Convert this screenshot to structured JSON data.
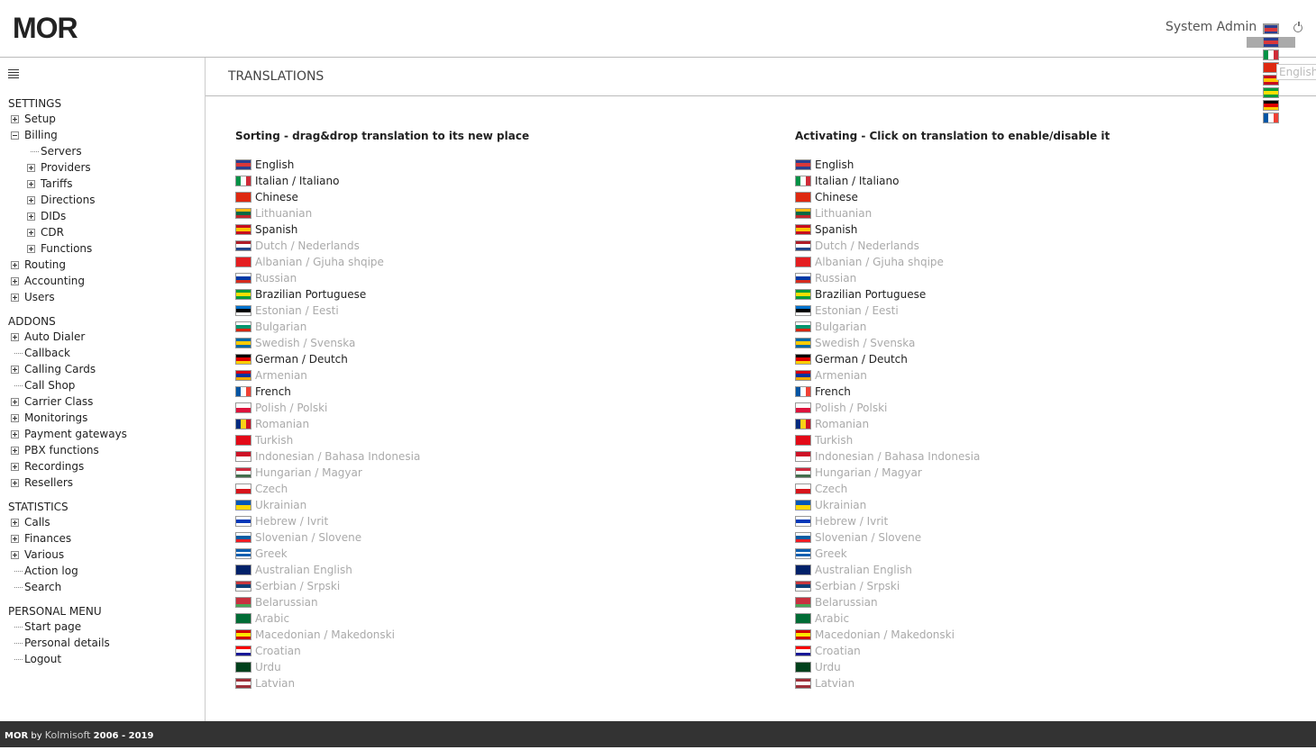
{
  "header": {
    "logo": "MOR",
    "user": "System Admin",
    "language_tooltip": "English"
  },
  "sidebar": {
    "sections": [
      {
        "title": "SETTINGS",
        "items": [
          {
            "label": "Setup",
            "node": "plus"
          },
          {
            "label": "Billing",
            "node": "minus",
            "children": [
              {
                "label": "Servers",
                "node": "leaf"
              },
              {
                "label": "Providers",
                "node": "plus"
              },
              {
                "label": "Tariffs",
                "node": "plus"
              },
              {
                "label": "Directions",
                "node": "plus"
              },
              {
                "label": "DIDs",
                "node": "plus"
              },
              {
                "label": "CDR",
                "node": "plus"
              },
              {
                "label": "Functions",
                "node": "plus"
              }
            ]
          },
          {
            "label": "Routing",
            "node": "plus"
          },
          {
            "label": "Accounting",
            "node": "plus"
          },
          {
            "label": "Users",
            "node": "plus"
          }
        ]
      },
      {
        "title": "ADDONS",
        "items": [
          {
            "label": "Auto Dialer",
            "node": "plus"
          },
          {
            "label": "Callback",
            "node": "leaf"
          },
          {
            "label": "Calling Cards",
            "node": "plus"
          },
          {
            "label": "Call Shop",
            "node": "leaf"
          },
          {
            "label": "Carrier Class",
            "node": "plus"
          },
          {
            "label": "Monitorings",
            "node": "plus"
          },
          {
            "label": "Payment gateways",
            "node": "plus"
          },
          {
            "label": "PBX functions",
            "node": "plus"
          },
          {
            "label": "Recordings",
            "node": "plus"
          },
          {
            "label": "Resellers",
            "node": "plus"
          }
        ]
      },
      {
        "title": "STATISTICS",
        "items": [
          {
            "label": "Calls",
            "node": "plus"
          },
          {
            "label": "Finances",
            "node": "plus"
          },
          {
            "label": "Various",
            "node": "plus"
          },
          {
            "label": "Action log",
            "node": "leaf"
          },
          {
            "label": "Search",
            "node": "leaf"
          }
        ]
      },
      {
        "title": "PERSONAL MENU",
        "items": [
          {
            "label": "Start page",
            "node": "leaf"
          },
          {
            "label": "Personal details",
            "node": "leaf"
          },
          {
            "label": "Logout",
            "node": "leaf"
          }
        ]
      }
    ]
  },
  "content": {
    "title": "TRANSLATIONS",
    "columns": [
      "Sorting - drag&drop translation to its new place",
      "Activating - Click on translation to enable/disable it"
    ],
    "active_color": "#222222",
    "inactive_color": "#aaaaaa",
    "languages": [
      {
        "name": "English",
        "active": true,
        "flag": [
          "#2a3f8f",
          "#d9383a",
          "#2a3f8f"
        ]
      },
      {
        "name": "Italian / Italiano",
        "active": true,
        "flag": [
          "#009246",
          "#ffffff",
          "#ce2b37"
        ],
        "vertical": true
      },
      {
        "name": "Chinese",
        "active": true,
        "flag": [
          "#de2910"
        ]
      },
      {
        "name": "Lithuanian",
        "active": false,
        "flag": [
          "#fdb913",
          "#006a44",
          "#c1272d"
        ]
      },
      {
        "name": "Spanish",
        "active": true,
        "flag": [
          "#c60b1e",
          "#ffc400",
          "#c60b1e"
        ]
      },
      {
        "name": "Dutch / Nederlands",
        "active": false,
        "flag": [
          "#ae1c28",
          "#ffffff",
          "#21468b"
        ]
      },
      {
        "name": "Albanian / Gjuha shqipe",
        "active": false,
        "flag": [
          "#e41e20"
        ]
      },
      {
        "name": "Russian",
        "active": false,
        "flag": [
          "#ffffff",
          "#0039a6",
          "#d52b1e"
        ]
      },
      {
        "name": "Brazilian Portuguese",
        "active": true,
        "flag": [
          "#009c3b",
          "#ffdf00",
          "#009c3b"
        ]
      },
      {
        "name": "Estonian / Eesti",
        "active": false,
        "flag": [
          "#0072ce",
          "#000000",
          "#ffffff"
        ]
      },
      {
        "name": "Bulgarian",
        "active": false,
        "flag": [
          "#ffffff",
          "#00966e",
          "#d62612"
        ]
      },
      {
        "name": "Swedish / Svenska",
        "active": false,
        "flag": [
          "#006aa7",
          "#fecc00",
          "#006aa7"
        ]
      },
      {
        "name": "German / Deutch",
        "active": true,
        "flag": [
          "#000000",
          "#dd0000",
          "#ffce00"
        ]
      },
      {
        "name": "Armenian",
        "active": false,
        "flag": [
          "#d90012",
          "#0033a0",
          "#f2a800"
        ]
      },
      {
        "name": "French",
        "active": true,
        "flag": [
          "#0055a4",
          "#ffffff",
          "#ef4135"
        ],
        "vertical": true
      },
      {
        "name": "Polish / Polski",
        "active": false,
        "flag": [
          "#ffffff",
          "#dc143c"
        ]
      },
      {
        "name": "Romanian",
        "active": false,
        "flag": [
          "#002b7f",
          "#fcd116",
          "#ce1126"
        ],
        "vertical": true
      },
      {
        "name": "Turkish",
        "active": false,
        "flag": [
          "#e30a17"
        ]
      },
      {
        "name": "Indonesian / Bahasa Indonesia",
        "active": false,
        "flag": [
          "#ce1126",
          "#ffffff"
        ]
      },
      {
        "name": "Hungarian / Magyar",
        "active": false,
        "flag": [
          "#cd2a3e",
          "#ffffff",
          "#436f4d"
        ]
      },
      {
        "name": "Czech",
        "active": false,
        "flag": [
          "#ffffff",
          "#d7141a"
        ]
      },
      {
        "name": "Ukrainian",
        "active": false,
        "flag": [
          "#0057b7",
          "#ffd700"
        ]
      },
      {
        "name": "Hebrew / Ivrit",
        "active": false,
        "flag": [
          "#ffffff",
          "#0038b8",
          "#ffffff"
        ]
      },
      {
        "name": "Slovenian / Slovene",
        "active": false,
        "flag": [
          "#ffffff",
          "#005da4",
          "#ed1c24"
        ]
      },
      {
        "name": "Greek",
        "active": false,
        "flag": [
          "#0d5eaf",
          "#ffffff",
          "#0d5eaf",
          "#ffffff"
        ]
      },
      {
        "name": "Australian English",
        "active": false,
        "flag": [
          "#012169"
        ]
      },
      {
        "name": "Serbian / Srpski",
        "active": false,
        "flag": [
          "#c6363c",
          "#0c4076",
          "#ffffff"
        ]
      },
      {
        "name": "Belarussian",
        "active": false,
        "flag": [
          "#c8313e",
          "#c8313e",
          "#4aa657"
        ]
      },
      {
        "name": "Arabic",
        "active": false,
        "flag": [
          "#006c35"
        ]
      },
      {
        "name": "Macedonian / Makedonski",
        "active": false,
        "flag": [
          "#d20000",
          "#ffe600",
          "#d20000"
        ]
      },
      {
        "name": "Croatian",
        "active": false,
        "flag": [
          "#ff0000",
          "#ffffff",
          "#171796"
        ]
      },
      {
        "name": "Urdu",
        "active": false,
        "flag": [
          "#01411c"
        ]
      },
      {
        "name": "Latvian",
        "active": false,
        "flag": [
          "#9e3039",
          "#ffffff",
          "#9e3039"
        ]
      }
    ]
  },
  "footer": {
    "brand": "MOR",
    "by": "by",
    "company": "Kolmisoft",
    "years": "2006 - 2019"
  }
}
